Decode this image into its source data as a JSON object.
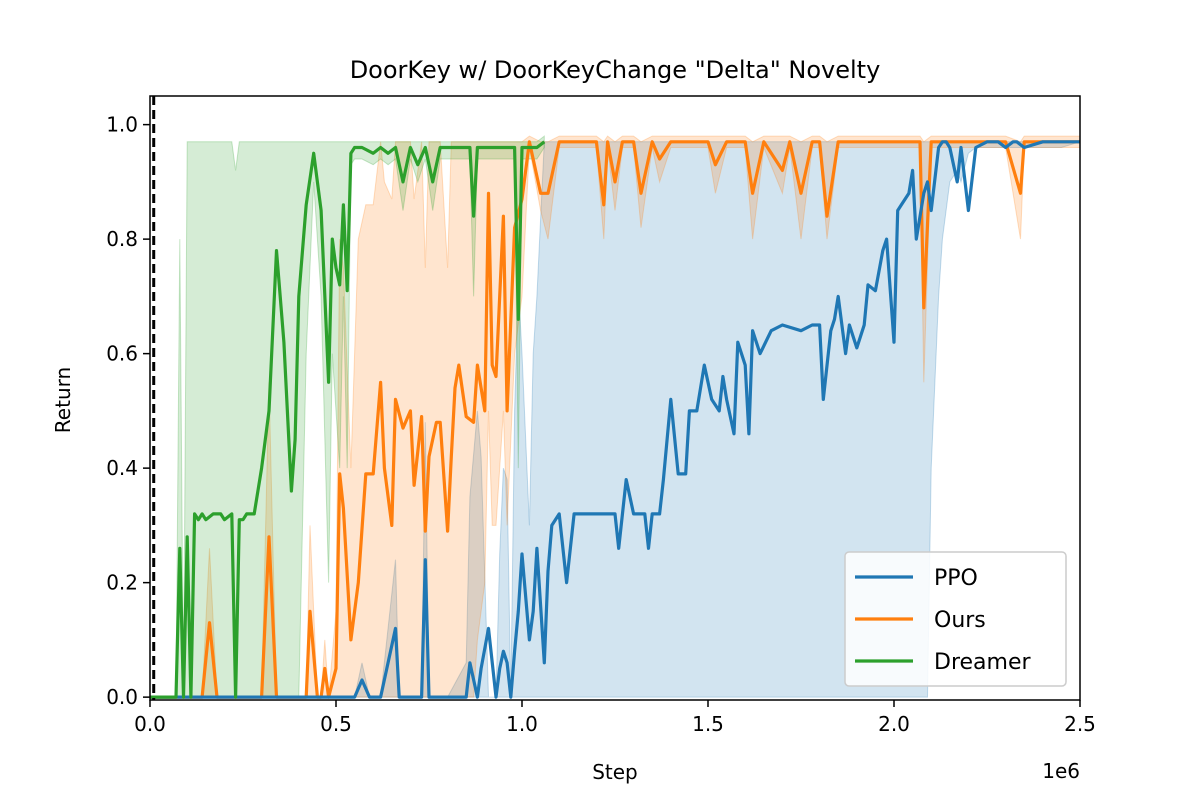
{
  "chart_data": {
    "type": "line",
    "title": "DoorKey w/ DoorKeyChange \"Delta\" Novelty",
    "xlabel": "Step",
    "ylabel": "Return",
    "x_offset_label": "1e6",
    "xlim": [
      0,
      2.5
    ],
    "ylim": [
      -0.005,
      1.05
    ],
    "xticks": [
      0.0,
      0.5,
      1.0,
      1.5,
      2.0,
      2.5
    ],
    "xtick_labels": [
      "0.0",
      "0.5",
      "1.0",
      "1.5",
      "2.0",
      "2.5"
    ],
    "yticks": [
      0.0,
      0.2,
      0.4,
      0.6,
      0.8,
      1.0
    ],
    "ytick_labels": [
      "0.0",
      "0.2",
      "0.4",
      "0.6",
      "0.8",
      "1.0"
    ],
    "grid": false,
    "legend_position": "bottom-right",
    "novelty_marker_x": 0.01,
    "series": [
      {
        "name": "PPO",
        "color": "#1f77b4",
        "x": [
          0.0,
          0.55,
          0.57,
          0.59,
          0.6,
          0.62,
          0.66,
          0.67,
          0.68,
          0.69,
          0.71,
          0.73,
          0.74,
          0.75,
          0.76,
          0.8,
          0.85,
          0.86,
          0.88,
          0.89,
          0.91,
          0.93,
          0.94,
          0.95,
          0.96,
          0.97,
          0.98,
          0.99,
          1.0,
          1.02,
          1.03,
          1.04,
          1.06,
          1.07,
          1.08,
          1.1,
          1.12,
          1.14,
          1.15,
          1.2,
          1.25,
          1.26,
          1.28,
          1.3,
          1.33,
          1.34,
          1.35,
          1.37,
          1.38,
          1.4,
          1.42,
          1.44,
          1.45,
          1.47,
          1.49,
          1.51,
          1.53,
          1.54,
          1.55,
          1.57,
          1.58,
          1.6,
          1.61,
          1.62,
          1.64,
          1.67,
          1.7,
          1.75,
          1.78,
          1.8,
          1.81,
          1.83,
          1.84,
          1.85,
          1.87,
          1.88,
          1.9,
          1.92,
          1.93,
          1.95,
          1.97,
          1.98,
          2.0,
          2.01,
          2.02,
          2.04,
          2.05,
          2.06,
          2.08,
          2.09,
          2.1,
          2.12,
          2.13,
          2.14,
          2.15,
          2.17,
          2.18,
          2.2,
          2.22,
          2.25,
          2.27,
          2.28,
          2.3,
          2.32,
          2.33,
          2.35,
          2.4,
          2.45,
          2.5
        ],
        "y": [
          0.0,
          0.0,
          0.03,
          0.0,
          0.0,
          0.0,
          0.12,
          0.0,
          0.0,
          0.0,
          0.0,
          0.0,
          0.24,
          0.0,
          0.0,
          0.0,
          0.0,
          0.06,
          0.0,
          0.05,
          0.12,
          0.0,
          0.05,
          0.08,
          0.06,
          0.0,
          0.08,
          0.15,
          0.25,
          0.1,
          0.15,
          0.26,
          0.06,
          0.22,
          0.3,
          0.32,
          0.2,
          0.32,
          0.32,
          0.32,
          0.32,
          0.26,
          0.38,
          0.32,
          0.32,
          0.26,
          0.32,
          0.32,
          0.38,
          0.52,
          0.39,
          0.39,
          0.5,
          0.5,
          0.58,
          0.52,
          0.5,
          0.56,
          0.52,
          0.46,
          0.62,
          0.58,
          0.46,
          0.64,
          0.6,
          0.64,
          0.65,
          0.64,
          0.65,
          0.65,
          0.52,
          0.64,
          0.66,
          0.7,
          0.6,
          0.65,
          0.61,
          0.65,
          0.72,
          0.71,
          0.78,
          0.8,
          0.62,
          0.85,
          0.86,
          0.88,
          0.92,
          0.8,
          0.88,
          0.9,
          0.85,
          0.96,
          0.97,
          0.97,
          0.96,
          0.9,
          0.96,
          0.85,
          0.96,
          0.97,
          0.97,
          0.97,
          0.96,
          0.97,
          0.97,
          0.96,
          0.97,
          0.97,
          0.97
        ],
        "lower": [
          0.0,
          0.0,
          0.0,
          0.0,
          0.0,
          0.0,
          0.0,
          0.0,
          0.0,
          0.0,
          0.0,
          0.0,
          0.0,
          0.0,
          0.0,
          0.0,
          0.0,
          0.0,
          0.0,
          0.0,
          0.0,
          0.0,
          0.0,
          0.0,
          0.0,
          0.0,
          0.0,
          0.0,
          0.0,
          0.0,
          0.0,
          0.0,
          0.0,
          0.0,
          0.0,
          0.0,
          0.0,
          0.0,
          0.0,
          0.0,
          0.0,
          0.0,
          0.0,
          0.0,
          0.0,
          0.0,
          0.0,
          0.0,
          0.0,
          0.0,
          0.0,
          0.0,
          0.0,
          0.0,
          0.0,
          0.0,
          0.0,
          0.0,
          0.0,
          0.0,
          0.0,
          0.0,
          0.0,
          0.0,
          0.0,
          0.0,
          0.0,
          0.0,
          0.0,
          0.0,
          0.0,
          0.0,
          0.0,
          0.0,
          0.0,
          0.0,
          0.0,
          0.0,
          0.0,
          0.0,
          0.0,
          0.0,
          0.0,
          0.0,
          0.0,
          0.0,
          0.0,
          0.0,
          0.0,
          0.0,
          0.4,
          0.7,
          0.8,
          0.85,
          0.9,
          0.92,
          0.9,
          0.95,
          0.96,
          0.96,
          0.96,
          0.96,
          0.96,
          0.96,
          0.96,
          0.96,
          0.96,
          0.96,
          0.97
        ],
        "upper": [
          0.0,
          0.0,
          0.06,
          0.0,
          0.0,
          0.0,
          0.24,
          0.0,
          0.0,
          0.0,
          0.0,
          0.0,
          0.48,
          0.0,
          0.0,
          0.0,
          0.06,
          0.35,
          0.5,
          0.42,
          0.0,
          0.0,
          0.25,
          0.4,
          0.38,
          0.0,
          0.5,
          0.72,
          0.6,
          0.3,
          0.6,
          0.7,
          0.97,
          0.97,
          0.97,
          0.97,
          0.97,
          0.97,
          0.97,
          0.97,
          0.97,
          0.97,
          0.97,
          0.97,
          0.97,
          0.97,
          0.97,
          0.97,
          0.97,
          0.97,
          0.97,
          0.97,
          0.97,
          0.97,
          0.97,
          0.97,
          0.97,
          0.97,
          0.97,
          0.97,
          0.97,
          0.97,
          0.97,
          0.97,
          0.97,
          0.97,
          0.97,
          0.97,
          0.97,
          0.97,
          0.97,
          0.97,
          0.97,
          0.97,
          0.97,
          0.97,
          0.97,
          0.97,
          0.97,
          0.97,
          0.97,
          0.97,
          0.97,
          0.97,
          0.97,
          0.97,
          0.97,
          0.97,
          0.97,
          0.97,
          0.97,
          0.97,
          0.97,
          0.97,
          0.97,
          0.97,
          0.97,
          0.97,
          0.97,
          0.97,
          0.97,
          0.97,
          0.97,
          0.97,
          0.97,
          0.97,
          0.97,
          0.97,
          0.97
        ]
      },
      {
        "name": "Ours",
        "color": "#ff7f0e",
        "x": [
          0.0,
          0.14,
          0.16,
          0.18,
          0.3,
          0.32,
          0.34,
          0.42,
          0.43,
          0.45,
          0.46,
          0.47,
          0.48,
          0.5,
          0.51,
          0.52,
          0.54,
          0.56,
          0.58,
          0.6,
          0.62,
          0.63,
          0.65,
          0.66,
          0.68,
          0.7,
          0.71,
          0.73,
          0.74,
          0.75,
          0.77,
          0.78,
          0.8,
          0.81,
          0.82,
          0.83,
          0.85,
          0.87,
          0.88,
          0.9,
          0.91,
          0.92,
          0.93,
          0.95,
          0.96,
          0.98,
          1.0,
          1.02,
          1.05,
          1.07,
          1.1,
          1.15,
          1.2,
          1.22,
          1.23,
          1.25,
          1.27,
          1.3,
          1.32,
          1.35,
          1.37,
          1.4,
          1.45,
          1.5,
          1.52,
          1.55,
          1.6,
          1.62,
          1.65,
          1.7,
          1.72,
          1.75,
          1.78,
          1.8,
          1.82,
          1.85,
          1.88,
          1.9,
          1.95,
          2.0,
          2.05,
          2.07,
          2.08,
          2.1,
          2.15,
          2.2,
          2.25,
          2.3,
          2.34,
          2.35,
          2.4,
          2.45,
          2.5
        ],
        "y": [
          0.0,
          0.0,
          0.13,
          0.0,
          0.0,
          0.28,
          0.0,
          0.0,
          0.15,
          0.0,
          0.0,
          0.05,
          0.0,
          0.05,
          0.39,
          0.33,
          0.1,
          0.2,
          0.39,
          0.39,
          0.55,
          0.4,
          0.3,
          0.52,
          0.47,
          0.5,
          0.37,
          0.49,
          0.29,
          0.42,
          0.48,
          0.48,
          0.29,
          0.42,
          0.54,
          0.58,
          0.49,
          0.48,
          0.58,
          0.5,
          0.88,
          0.58,
          0.56,
          0.84,
          0.5,
          0.82,
          0.87,
          0.97,
          0.88,
          0.88,
          0.97,
          0.97,
          0.97,
          0.86,
          0.97,
          0.9,
          0.97,
          0.97,
          0.88,
          0.97,
          0.94,
          0.97,
          0.97,
          0.97,
          0.93,
          0.97,
          0.97,
          0.88,
          0.97,
          0.92,
          0.97,
          0.88,
          0.97,
          0.97,
          0.84,
          0.97,
          0.97,
          0.97,
          0.97,
          0.97,
          0.97,
          0.97,
          0.68,
          0.97,
          0.97,
          0.97,
          0.97,
          0.97,
          0.88,
          0.97,
          0.97,
          0.97,
          0.97
        ],
        "lower": [
          0.0,
          0.0,
          0.0,
          0.0,
          0.0,
          0.0,
          0.0,
          0.0,
          0.0,
          0.0,
          0.0,
          0.0,
          0.0,
          0.0,
          0.0,
          0.0,
          0.0,
          0.0,
          0.0,
          0.0,
          0.0,
          0.0,
          0.0,
          0.0,
          0.0,
          0.0,
          0.0,
          0.0,
          0.0,
          0.0,
          0.0,
          0.0,
          0.0,
          0.0,
          0.0,
          0.0,
          0.0,
          0.0,
          0.1,
          0.2,
          0.5,
          0.3,
          0.3,
          0.5,
          0.3,
          0.6,
          0.7,
          0.96,
          0.85,
          0.8,
          0.96,
          0.96,
          0.96,
          0.8,
          0.96,
          0.85,
          0.96,
          0.96,
          0.82,
          0.96,
          0.9,
          0.96,
          0.96,
          0.96,
          0.88,
          0.96,
          0.96,
          0.8,
          0.96,
          0.88,
          0.96,
          0.8,
          0.96,
          0.96,
          0.8,
          0.96,
          0.96,
          0.96,
          0.96,
          0.96,
          0.96,
          0.96,
          0.55,
          0.96,
          0.96,
          0.96,
          0.96,
          0.96,
          0.8,
          0.96,
          0.96,
          0.96,
          0.96
        ],
        "upper": [
          0.0,
          0.0,
          0.26,
          0.0,
          0.0,
          0.55,
          0.0,
          0.0,
          0.3,
          0.0,
          0.0,
          0.1,
          0.0,
          0.15,
          0.8,
          0.75,
          0.4,
          0.8,
          0.86,
          0.86,
          0.97,
          0.9,
          0.87,
          0.97,
          0.97,
          0.97,
          0.87,
          0.97,
          0.75,
          0.97,
          0.97,
          0.97,
          0.75,
          0.97,
          0.97,
          0.97,
          0.97,
          0.97,
          0.97,
          0.97,
          0.97,
          0.97,
          0.97,
          0.97,
          0.97,
          0.97,
          0.97,
          0.98,
          0.97,
          0.97,
          0.98,
          0.98,
          0.98,
          0.97,
          0.98,
          0.97,
          0.98,
          0.98,
          0.97,
          0.98,
          0.98,
          0.98,
          0.98,
          0.98,
          0.98,
          0.98,
          0.98,
          0.97,
          0.98,
          0.98,
          0.98,
          0.97,
          0.98,
          0.98,
          0.97,
          0.98,
          0.98,
          0.98,
          0.98,
          0.98,
          0.98,
          0.98,
          0.97,
          0.98,
          0.98,
          0.98,
          0.98,
          0.98,
          0.97,
          0.98,
          0.98,
          0.98,
          0.98
        ]
      },
      {
        "name": "Dreamer",
        "color": "#2ca02c",
        "x": [
          0.0,
          0.07,
          0.08,
          0.09,
          0.1,
          0.11,
          0.12,
          0.13,
          0.14,
          0.15,
          0.17,
          0.19,
          0.2,
          0.22,
          0.23,
          0.24,
          0.25,
          0.26,
          0.28,
          0.3,
          0.32,
          0.34,
          0.36,
          0.38,
          0.39,
          0.4,
          0.42,
          0.44,
          0.45,
          0.46,
          0.48,
          0.49,
          0.5,
          0.51,
          0.52,
          0.53,
          0.54,
          0.55,
          0.57,
          0.6,
          0.62,
          0.64,
          0.66,
          0.68,
          0.7,
          0.72,
          0.74,
          0.76,
          0.78,
          0.8,
          0.82,
          0.84,
          0.86,
          0.87,
          0.88,
          0.9,
          0.92,
          0.94,
          0.96,
          0.98,
          0.99,
          1.0,
          1.02,
          1.04,
          1.06
        ],
        "y": [
          0.0,
          0.0,
          0.26,
          0.0,
          0.28,
          0.0,
          0.32,
          0.31,
          0.32,
          0.31,
          0.32,
          0.32,
          0.31,
          0.32,
          0.0,
          0.31,
          0.31,
          0.32,
          0.32,
          0.4,
          0.5,
          0.78,
          0.62,
          0.36,
          0.45,
          0.7,
          0.86,
          0.95,
          0.9,
          0.85,
          0.55,
          0.8,
          0.75,
          0.72,
          0.86,
          0.71,
          0.95,
          0.96,
          0.96,
          0.95,
          0.96,
          0.95,
          0.96,
          0.9,
          0.96,
          0.93,
          0.96,
          0.9,
          0.96,
          0.96,
          0.96,
          0.96,
          0.96,
          0.84,
          0.96,
          0.96,
          0.96,
          0.96,
          0.96,
          0.96,
          0.66,
          0.96,
          0.96,
          0.96,
          0.97
        ],
        "lower": [
          0.0,
          0.0,
          0.0,
          0.0,
          0.0,
          0.0,
          0.0,
          0.0,
          0.0,
          0.0,
          0.0,
          0.0,
          0.0,
          0.0,
          0.0,
          0.0,
          0.0,
          0.0,
          0.0,
          0.0,
          0.0,
          0.0,
          0.0,
          0.0,
          0.0,
          0.0,
          0.6,
          0.9,
          0.8,
          0.7,
          0.2,
          0.6,
          0.5,
          0.4,
          0.7,
          0.4,
          0.93,
          0.94,
          0.94,
          0.93,
          0.94,
          0.93,
          0.94,
          0.85,
          0.94,
          0.9,
          0.94,
          0.85,
          0.94,
          0.94,
          0.94,
          0.94,
          0.94,
          0.7,
          0.94,
          0.94,
          0.94,
          0.94,
          0.94,
          0.94,
          0.4,
          0.94,
          0.94,
          0.94,
          0.96
        ],
        "upper": [
          0.0,
          0.0,
          0.8,
          0.0,
          0.97,
          0.97,
          0.97,
          0.97,
          0.97,
          0.97,
          0.97,
          0.97,
          0.97,
          0.97,
          0.92,
          0.97,
          0.97,
          0.97,
          0.97,
          0.97,
          0.97,
          0.97,
          0.97,
          0.97,
          0.97,
          0.97,
          0.97,
          0.97,
          0.97,
          0.97,
          0.97,
          0.97,
          0.97,
          0.97,
          0.97,
          0.97,
          0.97,
          0.97,
          0.97,
          0.97,
          0.97,
          0.97,
          0.97,
          0.97,
          0.97,
          0.97,
          0.97,
          0.97,
          0.97,
          0.97,
          0.97,
          0.97,
          0.97,
          0.97,
          0.97,
          0.97,
          0.97,
          0.97,
          0.97,
          0.97,
          0.97,
          0.97,
          0.97,
          0.97,
          0.98
        ]
      }
    ]
  }
}
